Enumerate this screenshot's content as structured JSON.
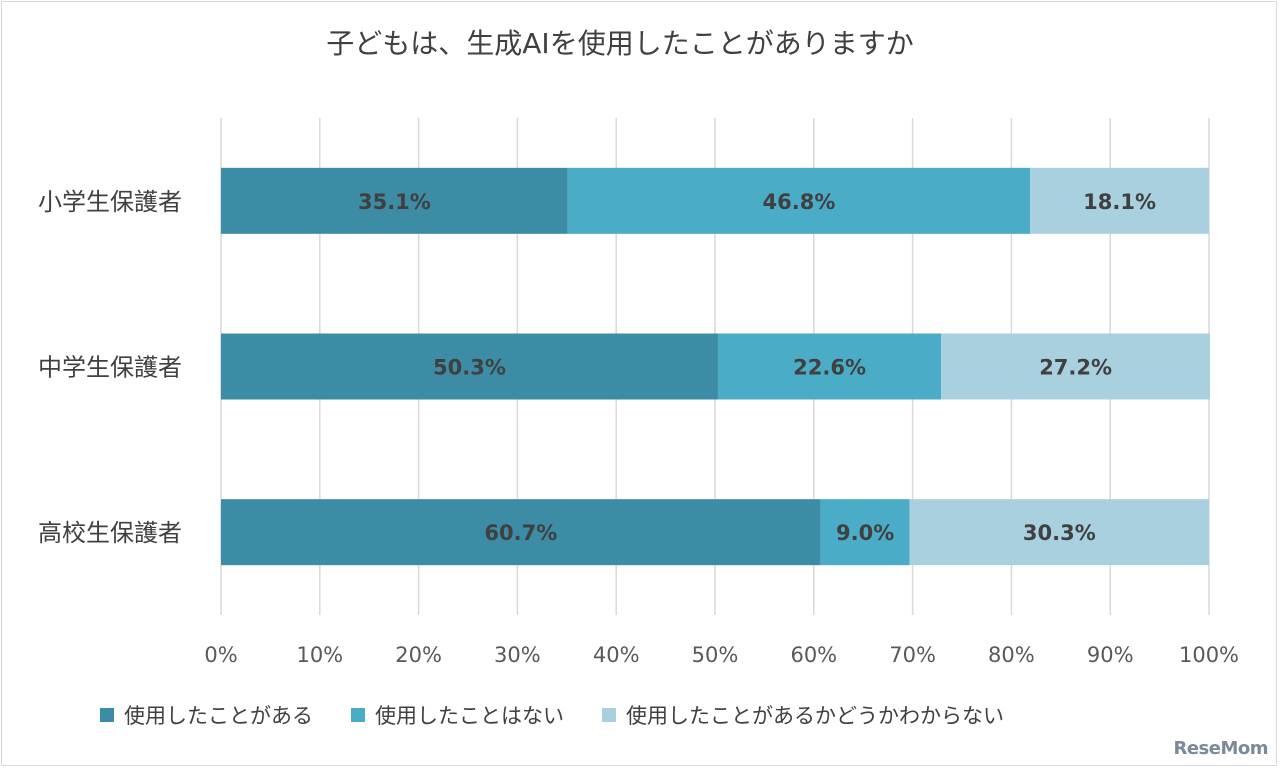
{
  "chart_data": {
    "type": "bar",
    "orientation": "horizontal",
    "stacked": true,
    "title": "子どもは、生成AIを使用したことがありますか",
    "categories": [
      "小学生保護者",
      "中学生保護者",
      "高校生保護者"
    ],
    "series": [
      {
        "name": "使用したことがある",
        "color": "#3c8ca5",
        "values": [
          35.1,
          50.3,
          60.7
        ],
        "labels": [
          "35.1%",
          "50.3%",
          "60.7%"
        ]
      },
      {
        "name": "使用したことはない",
        "color": "#4aacc6",
        "values": [
          46.8,
          22.6,
          9.0
        ],
        "labels": [
          "46.8%",
          "22.6%",
          "9.0%"
        ]
      },
      {
        "name": "使用したことがあるかどうかわからない",
        "color": "#a8d0de",
        "values": [
          18.1,
          27.2,
          30.3
        ],
        "labels": [
          "18.1%",
          "27.2%",
          "30.3%"
        ]
      }
    ],
    "x_ticks": [
      "0%",
      "10%",
      "20%",
      "30%",
      "40%",
      "50%",
      "60%",
      "70%",
      "80%",
      "90%",
      "100%"
    ],
    "xlim": [
      0,
      100
    ],
    "grid": true,
    "legend_position": "bottom"
  },
  "logo_text": "ReseMom"
}
